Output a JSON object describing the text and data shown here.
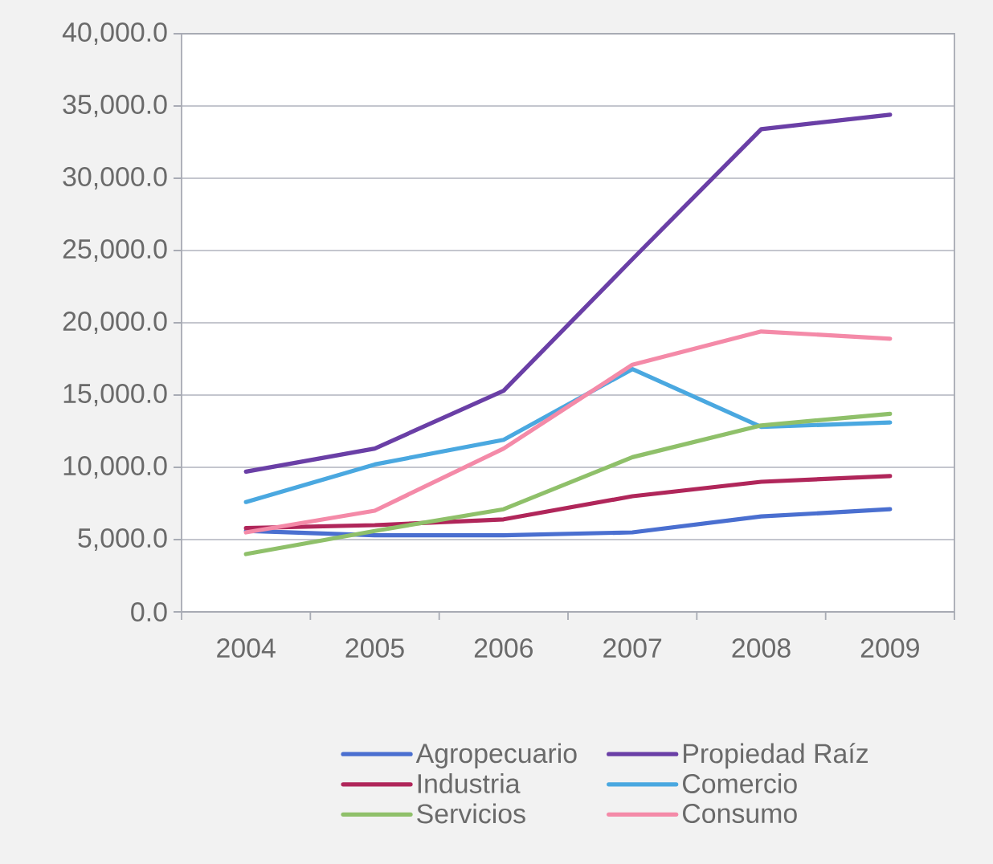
{
  "chart_data": {
    "type": "line",
    "categories": [
      "2004",
      "2005",
      "2006",
      "2007",
      "2008",
      "2009"
    ],
    "series": [
      {
        "name": "Agropecuario",
        "color": "#4a6fd0",
        "values": [
          5600,
          5300,
          5300,
          5500,
          6600,
          7100
        ]
      },
      {
        "name": "Propiedad Raíz",
        "color": "#6a3fa6",
        "values": [
          9700,
          11300,
          15300,
          24400,
          33400,
          34400
        ]
      },
      {
        "name": "Industria",
        "color": "#b0265a",
        "values": [
          5800,
          6000,
          6400,
          8000,
          9000,
          9400
        ]
      },
      {
        "name": "Comercio",
        "color": "#4aa8e0",
        "values": [
          7600,
          10200,
          11900,
          16800,
          12800,
          13100
        ]
      },
      {
        "name": "Servicios",
        "color": "#8fc06a",
        "values": [
          4000,
          5600,
          7100,
          10700,
          12900,
          13700
        ]
      },
      {
        "name": "Consumo",
        "color": "#f48aa8",
        "values": [
          5500,
          7000,
          11300,
          17100,
          19400,
          18900
        ]
      }
    ],
    "ylim": [
      0,
      40000
    ],
    "yticks": [
      {
        "value": 0,
        "label": "0.0"
      },
      {
        "value": 5000,
        "label": "5,000.0"
      },
      {
        "value": 10000,
        "label": "10,000.0"
      },
      {
        "value": 15000,
        "label": "15,000.0"
      },
      {
        "value": 20000,
        "label": "20,000.0"
      },
      {
        "value": 25000,
        "label": "25,000.0"
      },
      {
        "value": 30000,
        "label": "30,000.0"
      },
      {
        "value": 35000,
        "label": "35,000.0"
      },
      {
        "value": 40000,
        "label": "40,000.0"
      }
    ],
    "grid": "y",
    "legend": "bottom",
    "marker": "none",
    "line_style": "solid"
  }
}
